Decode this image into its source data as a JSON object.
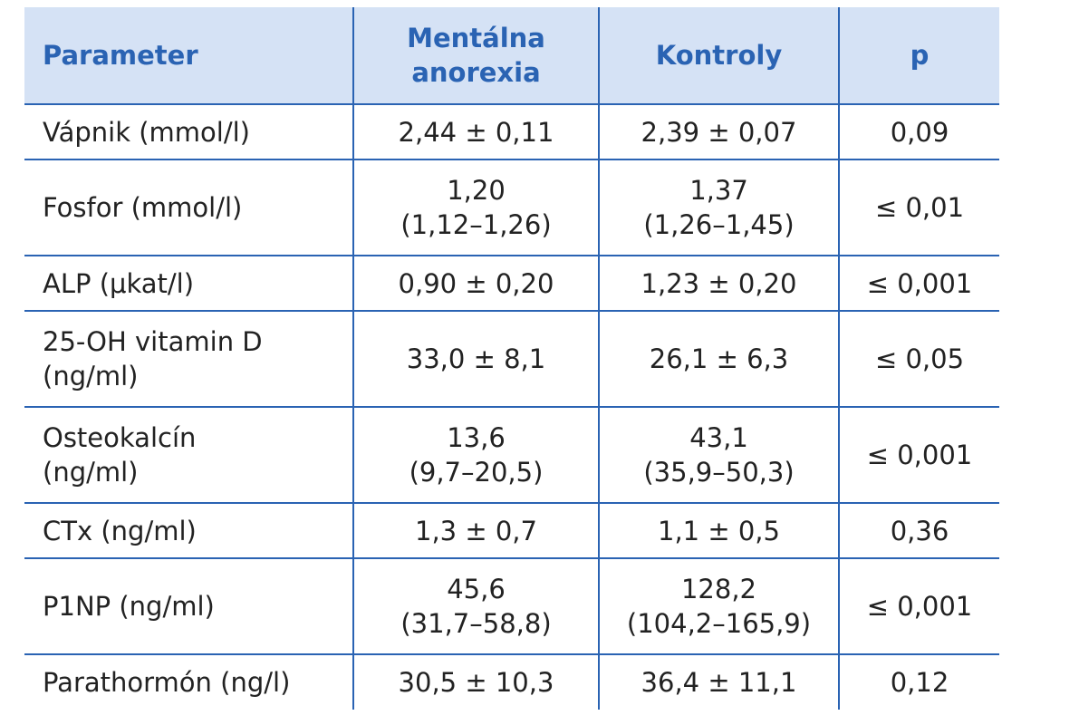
{
  "table": {
    "headers": [
      [
        "Parameter"
      ],
      [
        "Mentálna",
        "anorexia"
      ],
      [
        "Kontroly"
      ],
      [
        "p"
      ]
    ],
    "rows": [
      {
        "parameter": [
          "Vápnik (mmol/l)"
        ],
        "anorexia": [
          "2,44 ± 0,11"
        ],
        "kontroly": [
          "2,39 ± 0,07"
        ],
        "p": "0,09"
      },
      {
        "parameter": [
          "Fosfor (mmol/l)"
        ],
        "anorexia": [
          "1,20",
          "(1,12–1,26)"
        ],
        "kontroly": [
          "1,37",
          "(1,26–1,45)"
        ],
        "p": "≤ 0,01"
      },
      {
        "parameter": [
          "ALP (μkat/l)"
        ],
        "anorexia": [
          "0,90 ± 0,20"
        ],
        "kontroly": [
          "1,23 ± 0,20"
        ],
        "p": "≤ 0,001"
      },
      {
        "parameter": [
          "25-OH vitamin D",
          "(ng/ml)"
        ],
        "anorexia": [
          "33,0 ± 8,1"
        ],
        "kontroly": [
          "26,1 ± 6,3"
        ],
        "p": "≤ 0,05"
      },
      {
        "parameter": [
          "Osteokalcín",
          "(ng/ml)"
        ],
        "anorexia": [
          "13,6",
          "(9,7–20,5)"
        ],
        "kontroly": [
          "43,1",
          "(35,9–50,3)"
        ],
        "p": "≤ 0,001"
      },
      {
        "parameter": [
          "CTx (ng/ml)"
        ],
        "anorexia": [
          "1,3 ± 0,7"
        ],
        "kontroly": [
          "1,1 ± 0,5"
        ],
        "p": "0,36"
      },
      {
        "parameter": [
          "P1NP (ng/ml)"
        ],
        "anorexia": [
          "45,6",
          "(31,7–58,8)"
        ],
        "kontroly": [
          "128,2",
          "(104,2–165,9)"
        ],
        "p": "≤ 0,001"
      },
      {
        "parameter": [
          "Parathormón (ng/l)"
        ],
        "anorexia": [
          "30,5 ± 10,3"
        ],
        "kontroly": [
          "36,4 ± 11,1"
        ],
        "p": "0,12"
      }
    ]
  },
  "colors": {
    "header_bg": "#d5e2f5",
    "accent": "#2a63b3",
    "text": "#222222"
  }
}
